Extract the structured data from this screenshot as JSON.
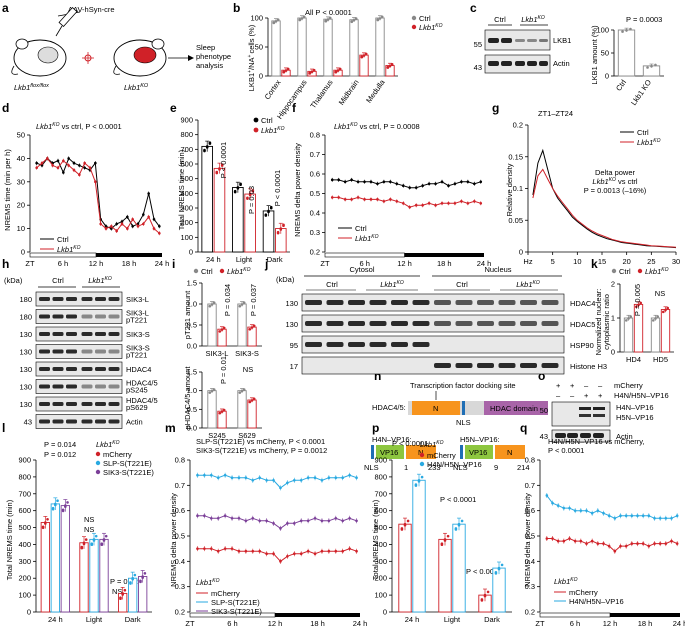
{
  "figure": {
    "panel_letters": [
      "a",
      "b",
      "c",
      "d",
      "e",
      "f",
      "g",
      "h",
      "i",
      "j",
      "k",
      "l",
      "m",
      "n",
      "o",
      "p",
      "q"
    ],
    "colors": {
      "ctrl": "#000000",
      "ko": "#d02128",
      "ctrl_dot": "#888888",
      "mcherry": "#d02128",
      "slp": "#29a9e1",
      "sik3": "#7b3f98",
      "h4n": "#29a9e1",
      "nterm": "#f7941d",
      "hdac": "#a864a8",
      "vp16": "#8dc63f",
      "nls": "#1f6eb5",
      "blot_bg": "#e8e8e8",
      "band": "#2a2a2a"
    }
  },
  "panel_a": {
    "virus": "AAV-hSyn-cre",
    "mouse1": "Lkb1",
    "mouse1_sup": "flox/flox",
    "mouse2": "Lkb1",
    "mouse2_sup": "KO",
    "analysis": [
      "Sleep",
      "phenotype",
      "analysis"
    ]
  },
  "panel_b": {
    "ylabel": "LKB1+/NA+ cells (%)",
    "ylabel_parts": [
      "LKB1",
      "+",
      "/NA",
      "+",
      "cells (%)"
    ],
    "note": "All P < 0.0001",
    "legend": [
      "Ctrl",
      "Lkb1",
      "KO"
    ],
    "chart_data": {
      "type": "bar",
      "categories": [
        "Cortex",
        "Hippocampus",
        "Thalamus",
        "Midbrain",
        "Medulla"
      ],
      "ylim": [
        0,
        100
      ],
      "yticks": [
        0,
        50,
        100
      ],
      "series": [
        {
          "name": "Ctrl",
          "values": [
            95,
            100,
            98,
            97,
            100
          ]
        },
        {
          "name": "Lkb1 KO",
          "values": [
            10,
            8,
            10,
            36,
            18
          ]
        }
      ]
    }
  },
  "panel_c": {
    "lanes": [
      "Ctrl",
      "Lkb1",
      "KO"
    ],
    "kda": [
      "55",
      "43"
    ],
    "bands": [
      "LKB1",
      "Actin"
    ],
    "p": "P = 0.0003",
    "ylabel": "LKB1 amount (%)",
    "chart_data": {
      "type": "bar",
      "categories": [
        "Ctrl",
        "Lkb1 KO"
      ],
      "values": [
        100,
        22
      ],
      "ylim": [
        0,
        100
      ],
      "yticks": [
        0,
        50,
        100
      ]
    }
  },
  "panel_d": {
    "title_pre": "Lkb1",
    "title_sup": "KO",
    "title_post": " vs ctrl, P < 0.0001",
    "ylabel": "NREMS time (min per h)",
    "xticks": [
      "ZT",
      "6 h",
      "12 h",
      "18 h",
      "24 h"
    ],
    "legend": [
      "Ctrl",
      "Lkb1",
      "KO"
    ],
    "chart_data": {
      "type": "line",
      "x": [
        0,
        1,
        2,
        3,
        4,
        5,
        6,
        7,
        8,
        9,
        10,
        11,
        12,
        13,
        14,
        15,
        16,
        17,
        18,
        19,
        20,
        21,
        22,
        23
      ],
      "ylim": [
        0,
        50
      ],
      "yticks": [
        0,
        10,
        20,
        30,
        40,
        50
      ],
      "series": [
        {
          "name": "Ctrl",
          "values": [
            38,
            37,
            40,
            38,
            39,
            34,
            40,
            38,
            37,
            36,
            35,
            38,
            14,
            11,
            10,
            12,
            13,
            15,
            11,
            12,
            16,
            25,
            14,
            11
          ]
        },
        {
          "name": "Lkb1 KO",
          "values": [
            36,
            38,
            40,
            37,
            36,
            39,
            37,
            35,
            33,
            38,
            36,
            30,
            12,
            10,
            11,
            9,
            12,
            10,
            14,
            11,
            12,
            15,
            10,
            8
          ]
        }
      ]
    }
  },
  "panel_e": {
    "ylabel": "Total NREMS time (min)",
    "legend": [
      "Ctrl",
      "Lkb1",
      "KO"
    ],
    "pvals": [
      "P < 0.0001",
      "P = 0.03",
      "P < 0.0001"
    ],
    "chart_data": {
      "type": "bar",
      "categories": [
        "24 h",
        "Light",
        "Dark"
      ],
      "ylim": [
        0,
        900
      ],
      "yticks": [
        0,
        100,
        200,
        300,
        400,
        500,
        600,
        700,
        800,
        900
      ],
      "series": [
        {
          "name": "Ctrl",
          "values": [
            720,
            440,
            280
          ]
        },
        {
          "name": "Lkb1 KO",
          "values": [
            570,
            395,
            160
          ]
        }
      ]
    }
  },
  "panel_f": {
    "title_pre": "Lkb1",
    "title_sup": "KO",
    "title_post": " vs ctrl, P = 0.0008",
    "ylabel": "NREMS delta power density",
    "xticks": [
      "ZT",
      "6 h",
      "12 h",
      "18 h",
      "24 h"
    ],
    "legend": [
      "Ctrl",
      "Lkb1",
      "KO"
    ],
    "chart_data": {
      "type": "line",
      "x": [
        0,
        1,
        2,
        3,
        4,
        5,
        6,
        7,
        8,
        9,
        10,
        11,
        12,
        13,
        14,
        15,
        16,
        17,
        18,
        19,
        20,
        21,
        22,
        23
      ],
      "ylim": [
        0.2,
        0.8
      ],
      "yticks": [
        0.2,
        0.3,
        0.4,
        0.5,
        0.6,
        0.7,
        0.8
      ],
      "series": [
        {
          "name": "Ctrl",
          "values": [
            0.57,
            0.57,
            0.56,
            0.57,
            0.56,
            0.56,
            0.56,
            0.55,
            0.56,
            0.56,
            0.55,
            0.54,
            0.53,
            0.53,
            0.54,
            0.55,
            0.55,
            0.56,
            0.54,
            0.55,
            0.56,
            0.56,
            0.55,
            0.56
          ]
        },
        {
          "name": "Lkb1 KO",
          "values": [
            0.48,
            0.48,
            0.47,
            0.47,
            0.48,
            0.47,
            0.47,
            0.47,
            0.46,
            0.47,
            0.46,
            0.45,
            0.43,
            0.44,
            0.44,
            0.45,
            0.44,
            0.45,
            0.45,
            0.45,
            0.46,
            0.45,
            0.46,
            0.45
          ]
        }
      ]
    }
  },
  "panel_g": {
    "title": "ZT1–ZT24",
    "legend": [
      "Ctrl",
      "Lkb1",
      "KO"
    ],
    "note1": "Delta power",
    "note2_pre": "Lkb1",
    "note2_sup": "KO",
    "note2_post": " vs ctrl",
    "note3": "P = 0.0013 (–16%)",
    "ylabel": "Relative density",
    "chart_data": {
      "type": "line",
      "x": [
        1,
        2,
        3,
        4,
        5,
        6,
        7,
        8,
        9,
        10,
        11,
        12,
        13,
        14,
        15,
        16,
        17,
        18,
        19,
        20,
        21,
        22,
        23,
        24,
        25,
        26,
        27,
        28,
        29,
        30
      ],
      "xlim": [
        0,
        30
      ],
      "ylim": [
        0,
        0.2
      ],
      "yticks": [
        0,
        0.05,
        0.1,
        0.15,
        0.2
      ],
      "xticks": [
        "Hz",
        "5",
        "10",
        "15",
        "20",
        "25",
        "30"
      ],
      "series": [
        {
          "name": "Ctrl",
          "values": [
            0.09,
            0.14,
            0.16,
            0.13,
            0.1,
            0.085,
            0.075,
            0.065,
            0.055,
            0.048,
            0.042,
            0.036,
            0.031,
            0.027,
            0.024,
            0.021,
            0.019,
            0.017,
            0.015,
            0.014,
            0.013,
            0.012,
            0.011,
            0.01,
            0.0095,
            0.009,
            0.0085,
            0.008,
            0.0075,
            0.007
          ]
        },
        {
          "name": "Lkb1 KO",
          "values": [
            0.085,
            0.12,
            0.13,
            0.115,
            0.1,
            0.088,
            0.078,
            0.068,
            0.058,
            0.05,
            0.044,
            0.038,
            0.033,
            0.029,
            0.026,
            0.023,
            0.02,
            0.018,
            0.016,
            0.015,
            0.014,
            0.013,
            0.012,
            0.011,
            0.01,
            0.0095,
            0.009,
            0.0085,
            0.008,
            0.0075
          ]
        }
      ]
    }
  },
  "panel_h": {
    "kda_head": "(kDa)",
    "lanes": [
      "Ctrl",
      "Lkb1",
      "KO"
    ],
    "rows": [
      {
        "kda": "180",
        "label": "SIK3-L"
      },
      {
        "kda": "180",
        "label": "SIK3-L pT221"
      },
      {
        "kda": "130",
        "label": "SIK3-S"
      },
      {
        "kda": "130",
        "label": "SIK3-S pT221"
      },
      {
        "kda": "130",
        "label": "HDAC4"
      },
      {
        "kda": "130",
        "label": "HDAC4/5 pS245"
      },
      {
        "kda": "130",
        "label": "HDAC4/5 pS629"
      },
      {
        "kda": "43",
        "label": "Actin"
      }
    ]
  },
  "panel_i": {
    "legend": [
      "Ctrl",
      "Lkb1",
      "KO"
    ],
    "top": {
      "ylabel": "pT221 amount",
      "pvals": [
        "P = 0.034",
        "P = 0.037"
      ],
      "chart_data": {
        "type": "bar",
        "categories": [
          "SIK3-L",
          "SIK3-S"
        ],
        "ylim": [
          0,
          1.5
        ],
        "yticks": [
          0,
          0.5,
          1.0,
          1.5
        ],
        "series": [
          {
            "name": "Ctrl",
            "values": [
              1.0,
              1.0
            ]
          },
          {
            "name": "Lkb1 KO",
            "values": [
              0.4,
              0.45
            ]
          }
        ]
      }
    },
    "bottom": {
      "ylabel": "pHDAC4/5 amount",
      "pvals": [
        "P = 0.01",
        "NS"
      ],
      "chart_data": {
        "type": "bar",
        "categories": [
          "S245",
          "S629"
        ],
        "ylim": [
          0,
          1.5
        ],
        "yticks": [
          0,
          0.5,
          1.0,
          1.5
        ],
        "series": [
          {
            "name": "Ctrl",
            "values": [
              1.0,
              1.0
            ]
          },
          {
            "name": "Lkb1 KO",
            "values": [
              0.45,
              0.75
            ]
          }
        ]
      }
    }
  },
  "panel_j": {
    "kda_head": "(kDa)",
    "groups": [
      "Cytosol",
      "Nucleus"
    ],
    "lanes": [
      "Ctrl",
      "Lkb1",
      "KO",
      "Ctrl",
      "Lkb1",
      "KO"
    ],
    "rows": [
      {
        "kda": "130",
        "label": "HDAC4"
      },
      {
        "kda": "130",
        "label": "HDAC5"
      },
      {
        "kda": "95",
        "label": "HSP90"
      },
      {
        "kda": "17",
        "label": "Histone H3"
      }
    ]
  },
  "panel_k": {
    "legend": [
      "Ctrl",
      "Lkb1",
      "KO"
    ],
    "ylabel": "Normalized nuclear: cytoplasmic ratio",
    "ylabel_lines": [
      "Normalized nuclear:",
      "cytoplasmic ratio"
    ],
    "pvals": [
      "P = 0.005",
      "NS"
    ],
    "chart_data": {
      "type": "bar",
      "categories": [
        "HD4",
        "HD5"
      ],
      "ylim": [
        0,
        2
      ],
      "yticks": [
        0,
        1,
        2
      ],
      "series": [
        {
          "name": "Ctrl",
          "values": [
            1.0,
            1.0
          ]
        },
        {
          "name": "Lkb1 KO",
          "values": [
            1.4,
            1.25
          ]
        }
      ]
    }
  },
  "panel_n": {
    "tf_label": "Transcription factor docking site",
    "hdac_label": "HDAC4/5:",
    "n": "N",
    "nls": "NLS",
    "hdac_domain": "HDAC domain",
    "h4n": {
      "label": "H4N–VP16:",
      "vp16": "VP16",
      "n": "N",
      "nls": "NLS",
      "start": "1",
      "end": "233"
    },
    "h5n": {
      "label": "H5N–VP16:",
      "vp16": "VP16",
      "n": "N",
      "nls": "NLS",
      "start": "9",
      "end": "214"
    }
  },
  "panel_o": {
    "rows": [
      "mCherry",
      "H4N/H5N–VP16"
    ],
    "signs": [
      [
        "+",
        "+",
        "–",
        "–"
      ],
      [
        "–",
        "–",
        "+",
        "+"
      ]
    ],
    "kda": [
      "50",
      "43"
    ],
    "labels": [
      "H4N–VP16",
      "H5N–VP16",
      "Actin"
    ]
  },
  "panel_l": {
    "title_pre": "Lkb1",
    "title_sup": "KO",
    "pvals": [
      "P = 0.014",
      "P = 0.012",
      "NS",
      "NS",
      "P = 0.023",
      "NS"
    ],
    "ylabel": "Total NREMS time (min)",
    "legend": [
      "mCherry",
      "SLP-S(T221E)",
      "SIK3-S(T221E)"
    ],
    "chart_data": {
      "type": "bar",
      "categories": [
        "24 h",
        "Light",
        "Dark"
      ],
      "ylim": [
        0,
        900
      ],
      "yticks": [
        0,
        100,
        200,
        300,
        400,
        500,
        600,
        700,
        800,
        900
      ],
      "series": [
        {
          "name": "mCherry",
          "values": [
            530,
            410,
            110
          ]
        },
        {
          "name": "SLP-S(T221E)",
          "values": [
            640,
            430,
            200
          ]
        },
        {
          "name": "SIK3-S(T221E)",
          "values": [
            630,
            430,
            210
          ]
        }
      ]
    }
  },
  "panel_m": {
    "title1": "SLP-S(T221E) vs mCherry, P < 0.0001",
    "title2": "SIK3-S(T221E) vs mCherry, P = 0.0012",
    "ylabel": "NREMS delta power density",
    "xticks": [
      "ZT",
      "6 h",
      "12 h",
      "18 h",
      "24 h"
    ],
    "legend_title_pre": "Lkb1",
    "legend_title_sup": "KO",
    "legend": [
      "mCherry",
      "SLP-S(T221E)",
      "SIK3-S(T221E)"
    ],
    "chart_data": {
      "type": "line",
      "x": [
        0,
        1,
        2,
        3,
        4,
        5,
        6,
        7,
        8,
        9,
        10,
        11,
        12,
        13,
        14,
        15,
        16,
        17,
        18,
        19,
        20,
        21,
        22,
        23
      ],
      "ylim": [
        0.2,
        0.8
      ],
      "yticks": [
        0.2,
        0.3,
        0.4,
        0.5,
        0.6,
        0.7,
        0.8
      ],
      "series": [
        {
          "name": "mCherry",
          "values": [
            0.45,
            0.45,
            0.45,
            0.44,
            0.45,
            0.45,
            0.44,
            0.44,
            0.44,
            0.44,
            0.43,
            0.43,
            0.4,
            0.42,
            0.43,
            0.43,
            0.44,
            0.43,
            0.44,
            0.44,
            0.44,
            0.44,
            0.45,
            0.44
          ]
        },
        {
          "name": "SLP-S(T221E)",
          "values": [
            0.74,
            0.74,
            0.74,
            0.73,
            0.74,
            0.73,
            0.73,
            0.73,
            0.72,
            0.73,
            0.72,
            0.72,
            0.69,
            0.71,
            0.72,
            0.72,
            0.73,
            0.73,
            0.72,
            0.73,
            0.73,
            0.73,
            0.74,
            0.73
          ]
        },
        {
          "name": "SIK3-S(T221E)",
          "values": [
            0.58,
            0.58,
            0.57,
            0.57,
            0.58,
            0.57,
            0.57,
            0.56,
            0.57,
            0.56,
            0.56,
            0.55,
            0.53,
            0.55,
            0.55,
            0.56,
            0.56,
            0.57,
            0.56,
            0.56,
            0.57,
            0.56,
            0.57,
            0.56
          ]
        }
      ]
    }
  },
  "panel_p": {
    "title_pre": "Lkb1",
    "title_sup": "KO",
    "pvals": [
      "P < 0.0001",
      "P < 0.0001",
      "P < 0.0001"
    ],
    "ylabel": "Total NREMS time (min)",
    "legend": [
      "mCherry",
      "H4N/H5N–VP16"
    ],
    "chart_data": {
      "type": "bar",
      "categories": [
        "24 h",
        "Light",
        "Dark"
      ],
      "ylim": [
        0,
        900
      ],
      "yticks": [
        0,
        100,
        200,
        300,
        400,
        500,
        600,
        700,
        800,
        900
      ],
      "series": [
        {
          "name": "mCherry",
          "values": [
            520,
            430,
            100
          ]
        },
        {
          "name": "H4N/H5N–VP16",
          "values": [
            780,
            520,
            260
          ]
        }
      ]
    }
  },
  "panel_q": {
    "title1": "H4N/H5N–VP16 vs mCherry,",
    "title2": "P < 0.0001",
    "ylabel": "NREMS delta power density",
    "xticks": [
      "ZT",
      "6 h",
      "12 h",
      "18 h",
      "24 h"
    ],
    "legend_title_pre": "Lkb1",
    "legend_title_sup": "KO",
    "legend": [
      "mCherry",
      "H4N/H5N–VP16"
    ],
    "chart_data": {
      "type": "line",
      "x": [
        0,
        1,
        2,
        3,
        4,
        5,
        6,
        7,
        8,
        9,
        10,
        11,
        12,
        13,
        14,
        15,
        16,
        17,
        18,
        19,
        20,
        21,
        22,
        23
      ],
      "ylim": [
        0.2,
        0.8
      ],
      "yticks": [
        0.2,
        0.3,
        0.4,
        0.5,
        0.6,
        0.7,
        0.8
      ],
      "series": [
        {
          "name": "mCherry",
          "values": [
            0.49,
            0.49,
            0.48,
            0.48,
            0.49,
            0.48,
            0.48,
            0.47,
            0.48,
            0.47,
            0.47,
            0.46,
            0.44,
            0.46,
            0.46,
            0.47,
            0.47,
            0.47,
            0.46,
            0.47,
            0.47,
            0.47,
            0.48,
            0.47
          ]
        },
        {
          "name": "H4N/H5N–VP16",
          "values": [
            0.66,
            0.63,
            0.62,
            0.61,
            0.61,
            0.6,
            0.6,
            0.6,
            0.59,
            0.6,
            0.59,
            0.58,
            0.57,
            0.58,
            0.58,
            0.58,
            0.58,
            0.58,
            0.58,
            0.57,
            0.57,
            0.57,
            0.57,
            0.58
          ]
        }
      ]
    }
  }
}
